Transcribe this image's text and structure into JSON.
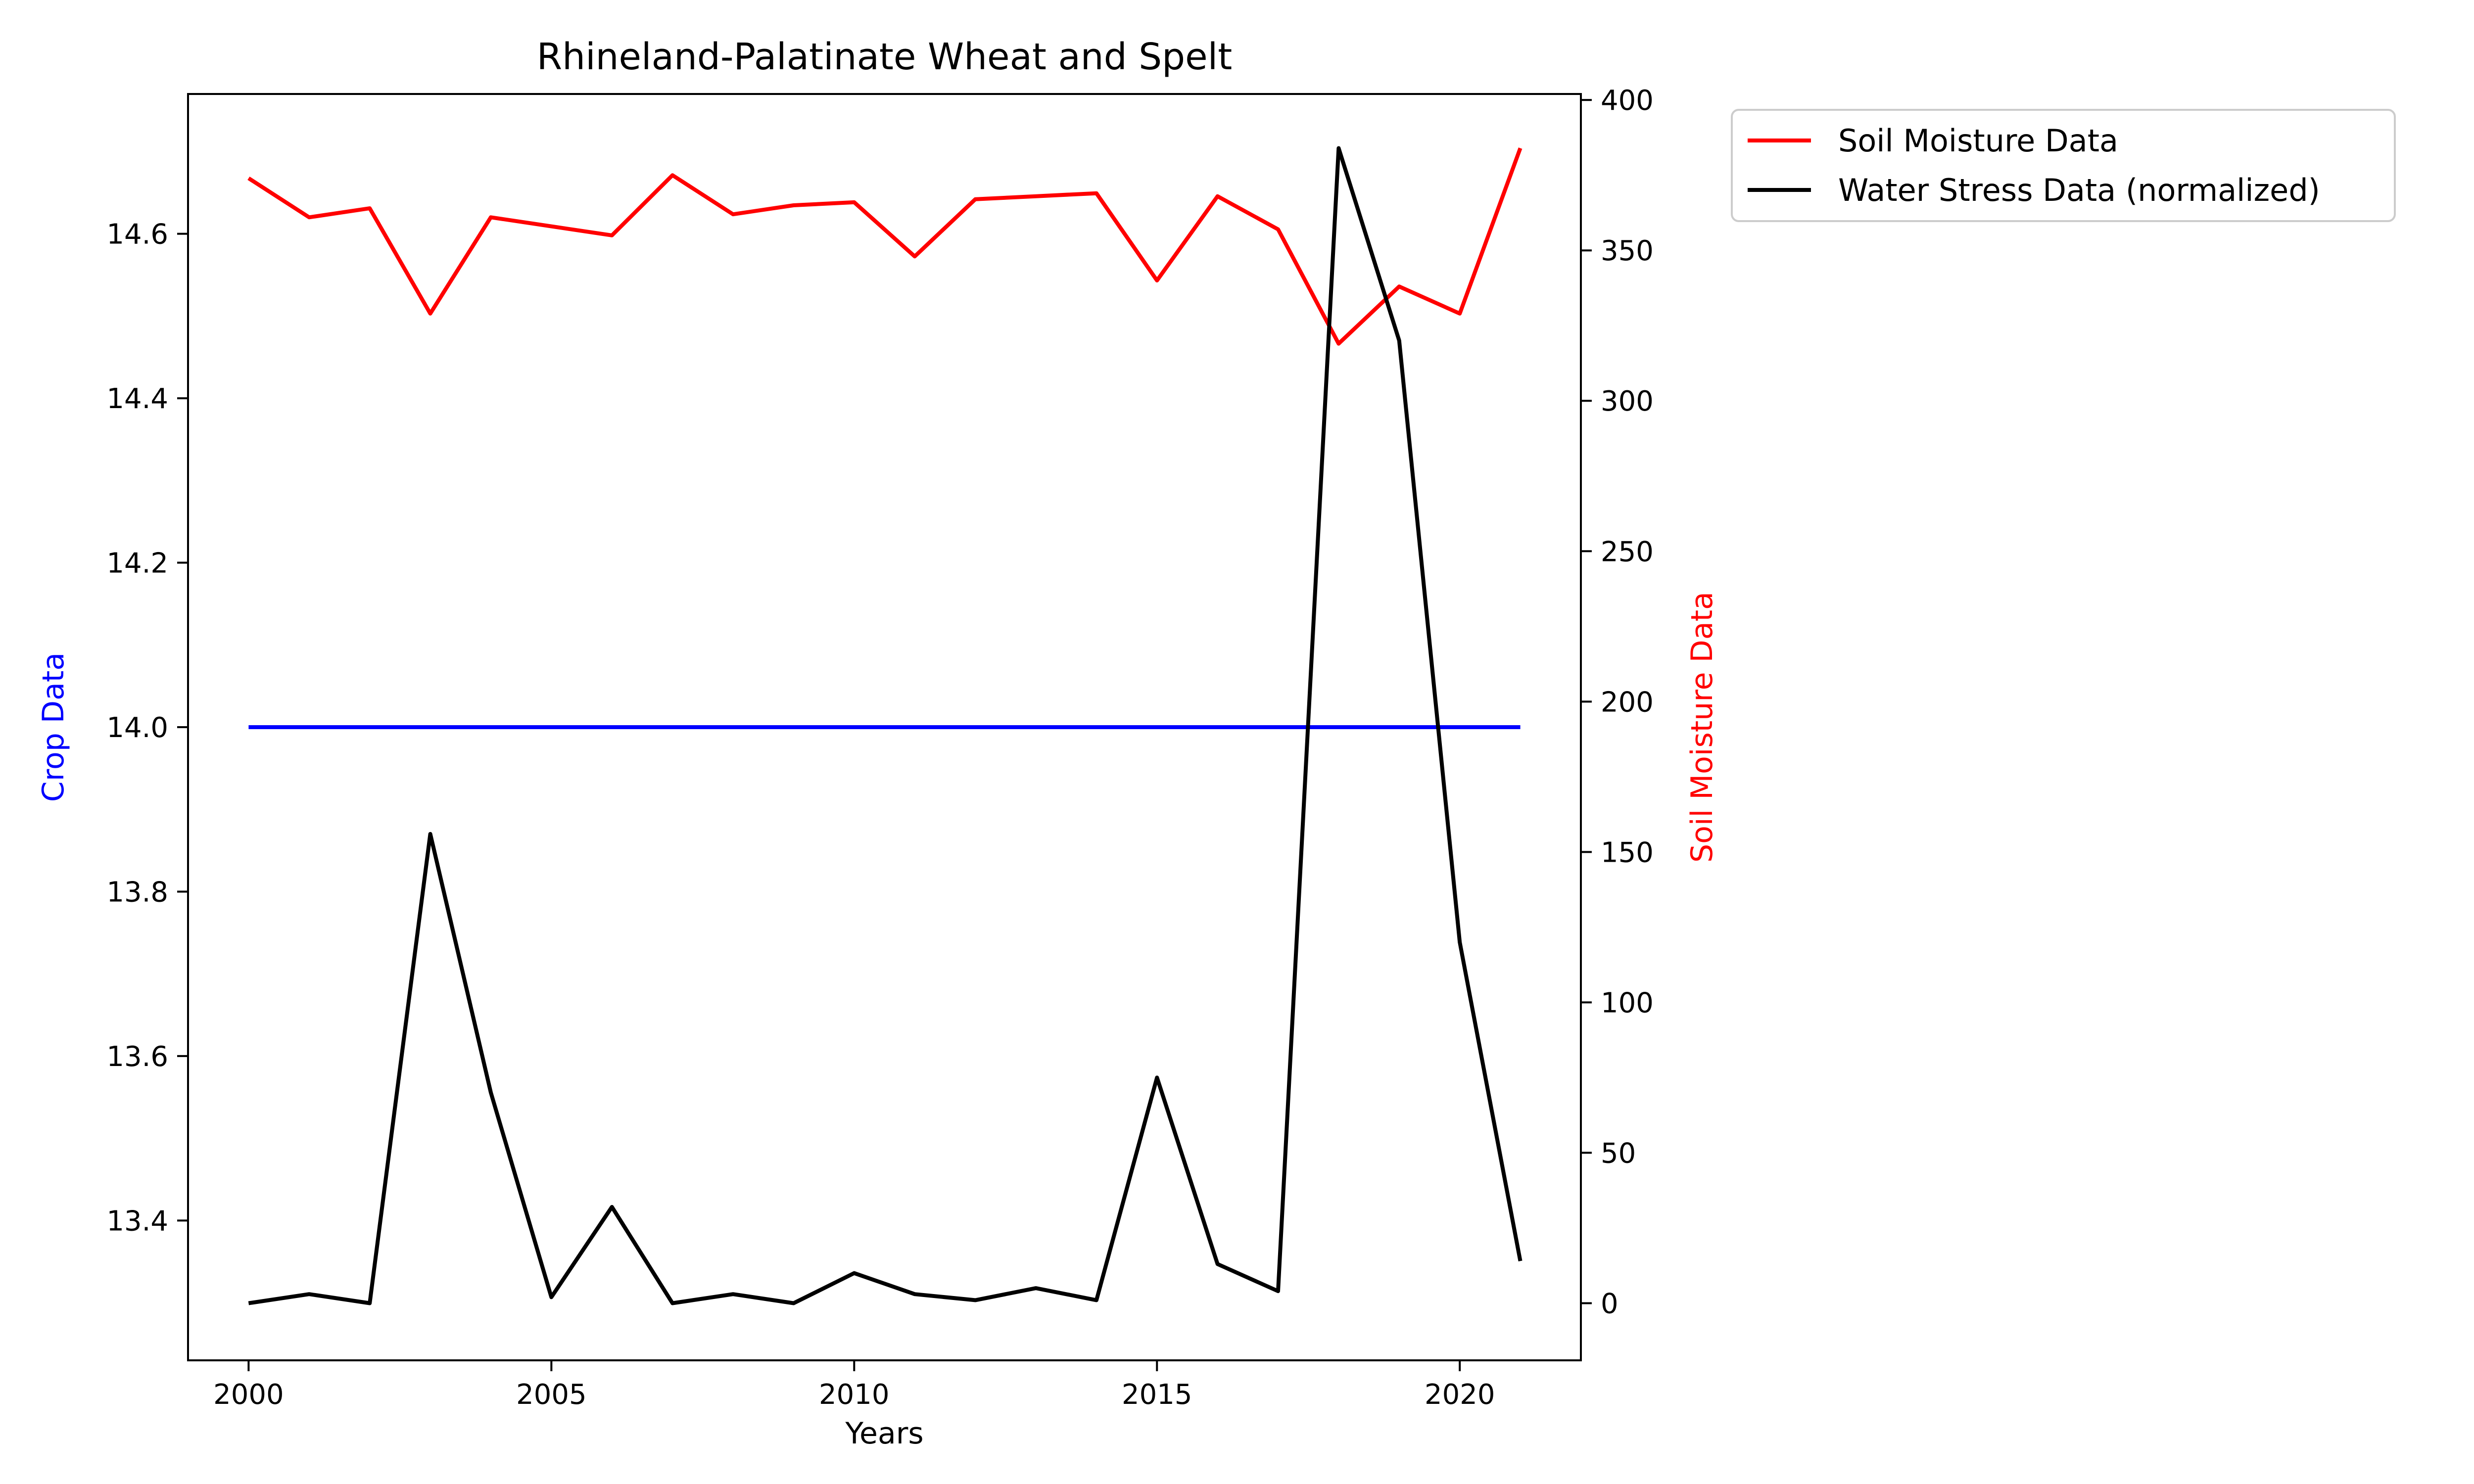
{
  "chart_data": {
    "type": "line",
    "title": "Rhineland-Palatinate Wheat and Spelt",
    "xlabel": "Years",
    "ylabel_left": "Crop Data",
    "ylabel_right": "Soil Moisture Data",
    "xlim": [
      1999,
      2022
    ],
    "ylim_left": [
      13.23,
      14.77
    ],
    "ylim_right": [
      -19,
      402
    ],
    "x_ticks": [
      2000,
      2005,
      2010,
      2015,
      2020
    ],
    "y_left_ticks": [
      13.4,
      13.6,
      13.8,
      14.0,
      14.2,
      14.4,
      14.6
    ],
    "y_right_ticks": [
      0,
      50,
      100,
      150,
      200,
      250,
      300,
      350,
      400
    ],
    "grid": false,
    "legend_position": "outside-top-right",
    "x": [
      2000,
      2001,
      2002,
      2003,
      2004,
      2005,
      2006,
      2007,
      2008,
      2009,
      2010,
      2011,
      2012,
      2013,
      2014,
      2015,
      2016,
      2017,
      2018,
      2019,
      2020,
      2021
    ],
    "series": [
      {
        "name": "",
        "axis": "left",
        "color": "#0000ff",
        "values": [
          14.0,
          14.0,
          14.0,
          14.0,
          14.0,
          14.0,
          14.0,
          14.0,
          14.0,
          14.0,
          14.0,
          14.0,
          14.0,
          14.0,
          14.0,
          14.0,
          14.0,
          14.0,
          14.0,
          14.0,
          14.0,
          14.0
        ]
      },
      {
        "name": "Soil Moisture Data",
        "axis": "right",
        "color": "#ff0000",
        "values": [
          374,
          361,
          364,
          329,
          361,
          358,
          355,
          375,
          362,
          365,
          366,
          348,
          367,
          368,
          369,
          340,
          368,
          357,
          319,
          338,
          329,
          384
        ]
      },
      {
        "name": "Water Stress Data (normalized)",
        "axis": "right",
        "color": "#000000",
        "values": [
          0,
          3,
          0,
          156,
          70,
          2,
          32,
          0,
          3,
          0,
          10,
          3,
          1,
          5,
          1,
          75,
          13,
          4,
          384,
          320,
          120,
          14
        ]
      }
    ]
  }
}
